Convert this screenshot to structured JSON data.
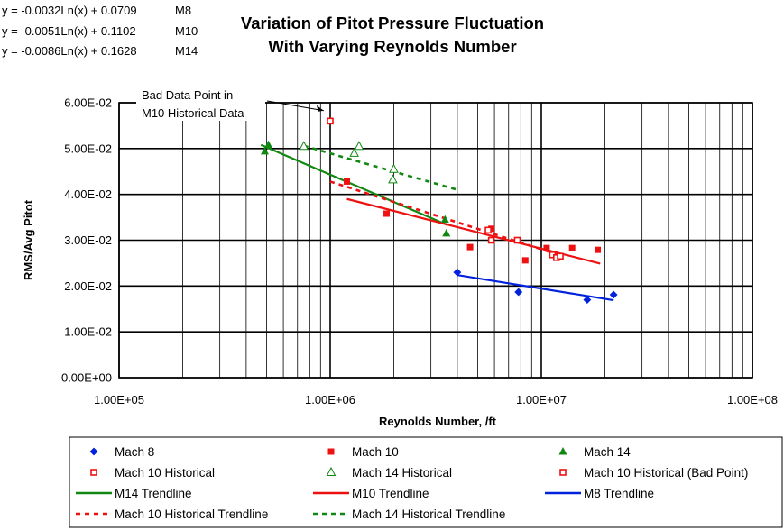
{
  "equations": [
    {
      "text": "y = -0.0032Ln(x) + 0.0709",
      "label": "M8"
    },
    {
      "text": "y = -0.0051Ln(x) + 0.1102",
      "label": "M10"
    },
    {
      "text": "y = -0.0086Ln(x) + 0.1628",
      "label": "M14"
    }
  ],
  "chart_data": {
    "type": "scatter",
    "title": "Variation of Pitot Pressure Fluctuation With Varying Reynolds Number",
    "title_lines": [
      "Variation of Pitot Pressure Fluctuation",
      "With Varying Reynolds Number"
    ],
    "xlabel": "Reynolds Number, /ft",
    "ylabel": "RMS/Avg Pitot",
    "x_scale": "log",
    "xlim": [
      100000,
      100000000
    ],
    "ylim": [
      0,
      0.06
    ],
    "x_ticks": [
      {
        "value": 100000,
        "label": "1.00E+05"
      },
      {
        "value": 1000000,
        "label": "1.00E+06"
      },
      {
        "value": 10000000,
        "label": "1.00E+07"
      },
      {
        "value": 100000000,
        "label": "1.00E+08"
      }
    ],
    "y_ticks": [
      {
        "value": 0,
        "label": "0.00E+00"
      },
      {
        "value": 0.01,
        "label": "1.00E-02"
      },
      {
        "value": 0.02,
        "label": "2.00E-02"
      },
      {
        "value": 0.03,
        "label": "3.00E-02"
      },
      {
        "value": 0.04,
        "label": "4.00E-02"
      },
      {
        "value": 0.05,
        "label": "5.00E-02"
      },
      {
        "value": 0.06,
        "label": "6.00E-02"
      }
    ],
    "grid": true,
    "legend_position": "bottom",
    "annotation": {
      "lines": [
        "Bad Data Point in",
        "M10 Historical Data"
      ],
      "target_x": 960000,
      "target_y": 0.0575
    },
    "series": [
      {
        "name": "Mach 8",
        "kind": "points",
        "marker": "diamond",
        "color": "#0022dd",
        "points": [
          [
            4000000,
            0.023
          ],
          [
            7800000,
            0.0187
          ],
          [
            16500000,
            0.017
          ],
          [
            22000000,
            0.0181
          ]
        ]
      },
      {
        "name": "Mach 10",
        "kind": "points",
        "marker": "square",
        "color": "#ee1111",
        "points": [
          [
            1200000,
            0.0428
          ],
          [
            1850000,
            0.0358
          ],
          [
            4600000,
            0.0285
          ],
          [
            5800000,
            0.0325
          ],
          [
            8400000,
            0.0256
          ],
          [
            10600000,
            0.0283
          ],
          [
            14000000,
            0.0283
          ],
          [
            18500000,
            0.0279
          ]
        ]
      },
      {
        "name": "Mach 14",
        "kind": "points",
        "marker": "triangle",
        "color": "#118811",
        "points": [
          [
            490000,
            0.0494
          ],
          [
            510000,
            0.0508
          ],
          [
            3500000,
            0.0345
          ],
          [
            3550000,
            0.0315
          ]
        ]
      },
      {
        "name": "Mach 10 Historical",
        "kind": "points",
        "marker": "square-open",
        "color": "#ee1111",
        "points": [
          [
            5600000,
            0.0322
          ],
          [
            5800000,
            0.03
          ],
          [
            7700000,
            0.03
          ],
          [
            11300000,
            0.0268
          ],
          [
            11800000,
            0.0262
          ],
          [
            12300000,
            0.0265
          ]
        ]
      },
      {
        "name": "Mach 14 Historical",
        "kind": "points",
        "marker": "triangle-open",
        "color": "#118811",
        "points": [
          [
            750000,
            0.0505
          ],
          [
            1300000,
            0.049
          ],
          [
            1370000,
            0.0505
          ],
          [
            2000000,
            0.0455
          ],
          [
            1980000,
            0.0432
          ]
        ]
      },
      {
        "name": "Mach 10 Historical (Bad Point)",
        "kind": "points",
        "marker": "square-open",
        "color": "#ee1111",
        "points": [
          [
            1000000,
            0.056
          ]
        ]
      },
      {
        "name": "M14 Trendline",
        "kind": "line",
        "dash": false,
        "color": "#118811",
        "points": [
          [
            470000,
            0.0508
          ],
          [
            3600000,
            0.0333
          ]
        ]
      },
      {
        "name": "M10 Trendline",
        "kind": "line",
        "dash": false,
        "color": "#ee1111",
        "points": [
          [
            1200000,
            0.039
          ],
          [
            19000000,
            0.0249
          ]
        ]
      },
      {
        "name": "M8 Trendline",
        "kind": "line",
        "dash": false,
        "color": "#0022dd",
        "points": [
          [
            4000000,
            0.0224
          ],
          [
            22000000,
            0.0169
          ]
        ]
      },
      {
        "name": "Mach 10 Historical Trendline",
        "kind": "line",
        "dash": true,
        "color": "#ee1111",
        "points": [
          [
            1000000,
            0.0428
          ],
          [
            12500000,
            0.0266
          ]
        ]
      },
      {
        "name": "Mach 14 Historical Trendline",
        "kind": "line",
        "dash": true,
        "color": "#118811",
        "points": [
          [
            750000,
            0.0506
          ],
          [
            4000000,
            0.041
          ]
        ]
      }
    ]
  }
}
